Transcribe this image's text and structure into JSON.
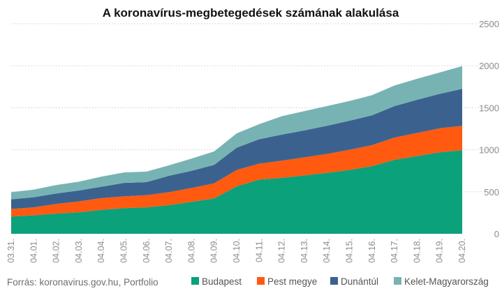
{
  "chart_data": {
    "type": "area",
    "stacked": true,
    "title": "A koronavírus-megbetegedések számának alakulása",
    "source": "Forrás: koronavirus.gov.hu, Portfolio",
    "categories": [
      "03.31.",
      "04.01.",
      "04.02.",
      "04.03.",
      "04.04.",
      "04.05.",
      "04.06.",
      "04.07.",
      "04.08.",
      "04.09.",
      "04.10.",
      "04.11.",
      "04.12.",
      "04.13.",
      "04.14.",
      "04.15.",
      "04.16.",
      "04.17.",
      "04.18.",
      "04.19.",
      "04.20."
    ],
    "ylim": [
      0,
      2500
    ],
    "yticks": [
      0,
      500,
      1000,
      1500,
      2000,
      2500
    ],
    "grid": true,
    "legend_position": "bottom-right",
    "series": [
      {
        "name": "Budapest",
        "color": "#0aa17b",
        "values": [
          205,
          220,
          240,
          255,
          285,
          305,
          315,
          340,
          380,
          420,
          565,
          645,
          665,
          695,
          725,
          760,
          805,
          880,
          925,
          970,
          995
        ]
      },
      {
        "name": "Pest megye",
        "color": "#ff5a10",
        "values": [
          90,
          95,
          115,
          130,
          140,
          140,
          145,
          155,
          165,
          180,
          195,
          190,
          205,
          215,
          225,
          240,
          250,
          265,
          275,
          285,
          290
        ]
      },
      {
        "name": "Dunántúl",
        "color": "#3b628f",
        "values": [
          115,
          120,
          125,
          130,
          135,
          160,
          155,
          195,
          205,
          220,
          265,
          290,
          310,
          320,
          335,
          345,
          355,
          375,
          395,
          410,
          440
        ]
      },
      {
        "name": "Kelet-Magyarország",
        "color": "#78b3b4",
        "values": [
          85,
          90,
          100,
          105,
          120,
          125,
          125,
          125,
          145,
          160,
          170,
          180,
          220,
          230,
          235,
          235,
          240,
          245,
          250,
          255,
          270
        ]
      }
    ]
  }
}
